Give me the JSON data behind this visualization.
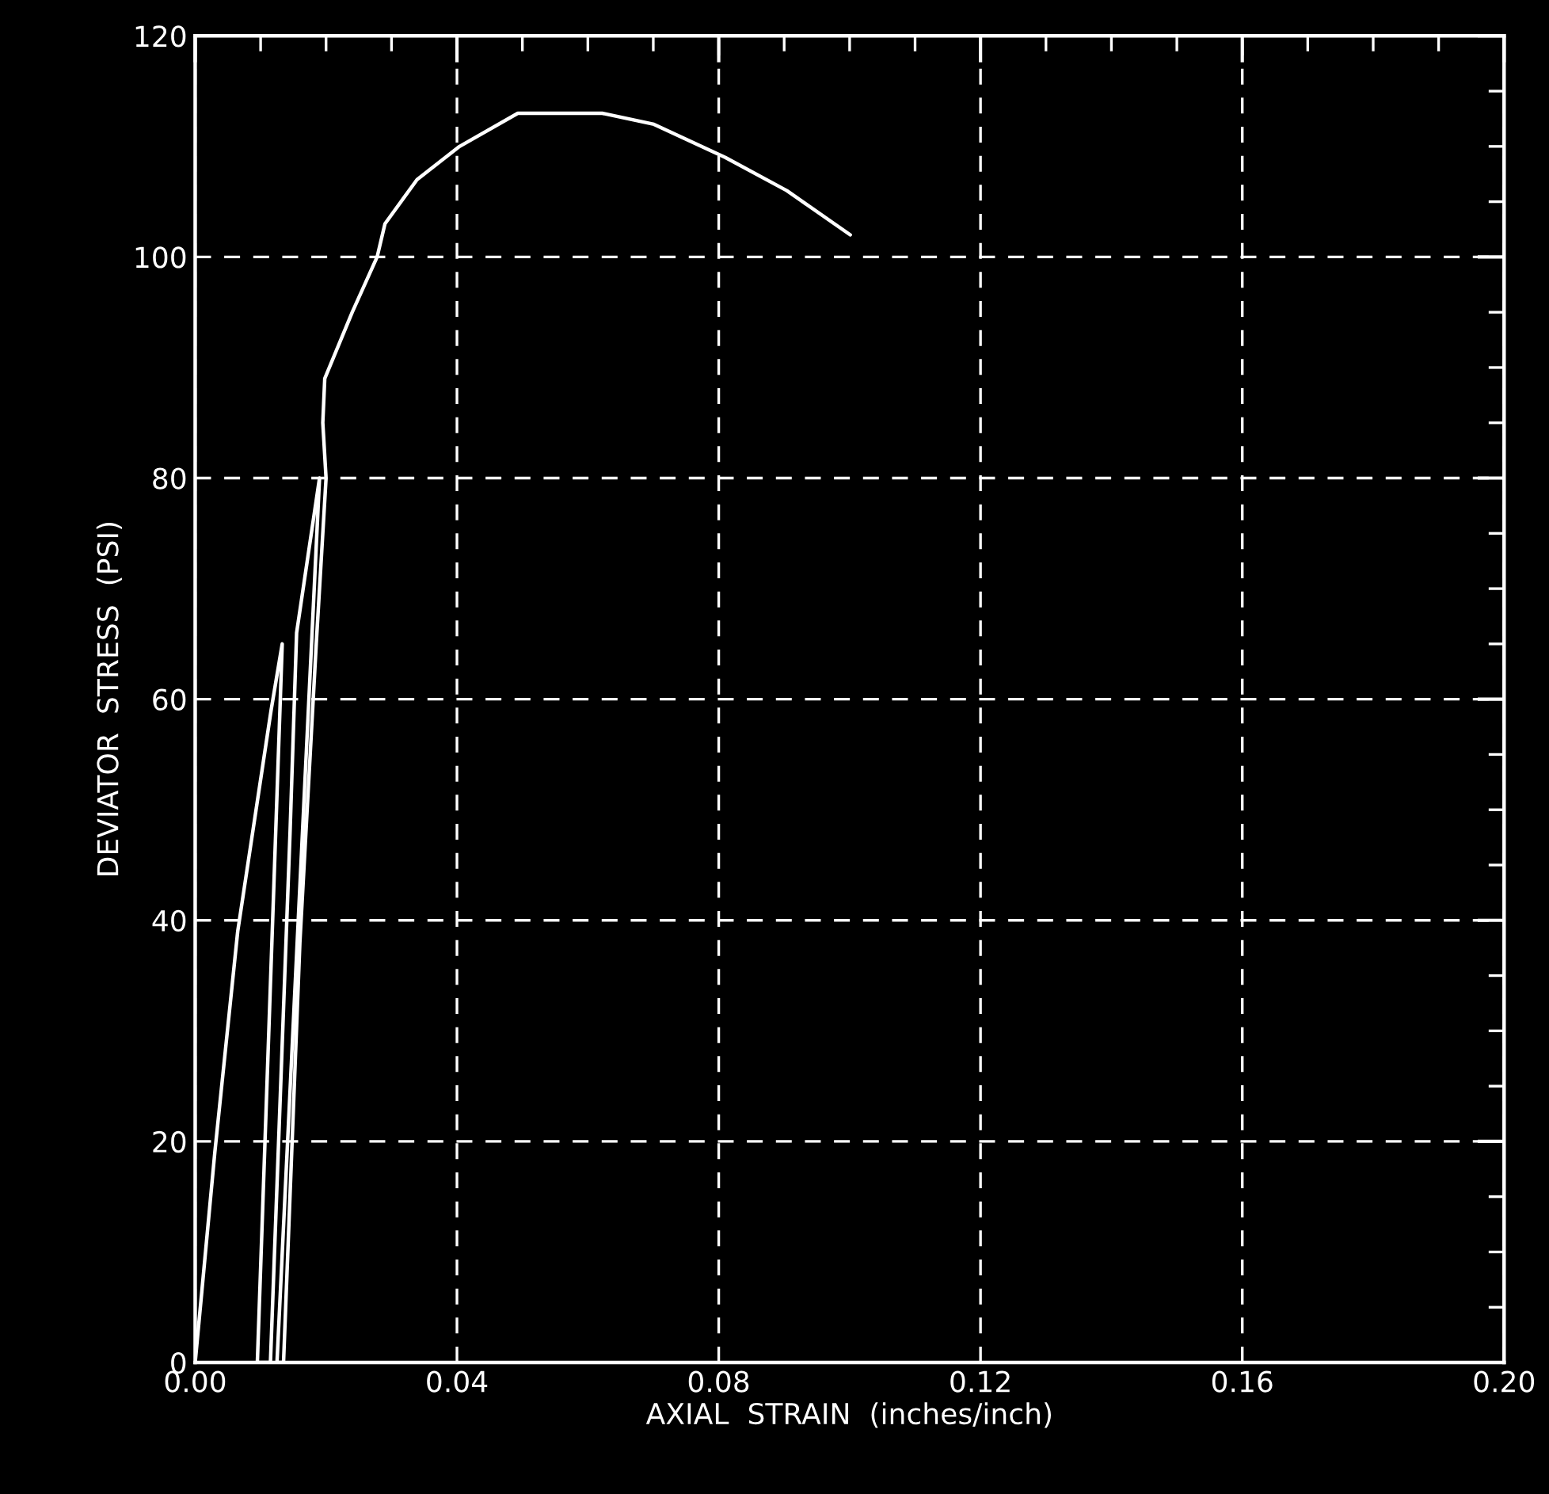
{
  "chart_data": {
    "type": "line",
    "xlabel": "AXIAL  STRAIN  (inches/inch)",
    "ylabel": "DEVIATOR  STRESS  (PSI)",
    "xlim": [
      0,
      0.2
    ],
    "ylim": [
      0,
      120
    ],
    "xticks": [
      {
        "value": 0,
        "label": "0.00"
      },
      {
        "value": 0.04,
        "label": "0.04"
      },
      {
        "value": 0.08,
        "label": "0.08"
      },
      {
        "value": 0.12,
        "label": "0.12"
      },
      {
        "value": 0.16,
        "label": "0.16"
      },
      {
        "value": 0.2,
        "label": "0.20"
      }
    ],
    "yticks": [
      0,
      20,
      40,
      60,
      80,
      100,
      120
    ],
    "grid": true,
    "marker": "none",
    "line_style": "solid",
    "series": [
      {
        "color": "#ffffff",
        "x": [
          0,
          0.003,
          0.0065,
          0.0116,
          0.0133,
          0.0095,
          0.0115,
          0.0145,
          0.0155,
          0.017,
          0.019,
          0.0125,
          0.0135,
          0.016,
          0.0185,
          0.02,
          0.0195,
          0.0198,
          0.024,
          0.0278,
          0.029,
          0.0339,
          0.0404,
          0.0493,
          0.0622,
          0.0701,
          0.081,
          0.0904,
          0.1001
        ],
        "values": [
          0,
          19,
          39,
          59,
          65,
          0,
          0,
          48,
          66,
          72,
          80,
          0,
          0,
          38,
          65,
          80,
          85,
          89,
          95,
          100,
          103,
          107,
          110,
          113,
          113,
          112,
          109,
          106,
          102
        ]
      }
    ]
  }
}
